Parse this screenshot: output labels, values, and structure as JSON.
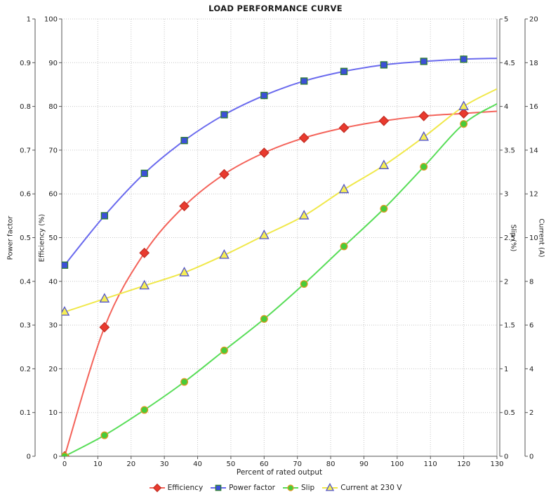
{
  "title": "LOAD PERFORMANCE CURVE",
  "chart_data": {
    "type": "line",
    "title": "LOAD PERFORMANCE CURVE",
    "xlabel": "Percent of rated output",
    "xlim": [
      0,
      130
    ],
    "x_tick_step": 10,
    "grid": true,
    "legend_position": "bottom",
    "x": [
      0,
      12,
      24,
      36,
      48,
      60,
      72,
      84,
      96,
      108,
      120
    ],
    "axes": [
      {
        "id": "power_factor",
        "label": "Power factor",
        "side": "left",
        "position": "outer",
        "min": 0,
        "max": 1,
        "tick_step": 0.1
      },
      {
        "id": "efficiency",
        "label": "Efficiency (%)",
        "side": "left",
        "position": "inner",
        "min": 0,
        "max": 100,
        "tick_step": 10
      },
      {
        "id": "slip",
        "label": "Slip (%)",
        "side": "right",
        "position": "inner",
        "min": 0,
        "max": 5,
        "tick_step": 0.5
      },
      {
        "id": "current",
        "label": "Current (A)",
        "side": "right",
        "position": "outer",
        "min": 0,
        "max": 20,
        "tick_step": 2
      }
    ],
    "series": [
      {
        "name": "Efficiency",
        "axis": "efficiency",
        "marker": "diamond",
        "line_color": "#f4635a",
        "marker_fill": "#e93a2e",
        "marker_stroke": "#c42f25",
        "values": [
          0,
          29.5,
          46.5,
          57.2,
          64.5,
          69.4,
          72.8,
          75.1,
          76.7,
          77.8,
          78.4
        ],
        "fit_value_at_xmax": 78.9
      },
      {
        "name": "Power factor",
        "axis": "power_factor",
        "marker": "square",
        "line_color": "#6a6aee",
        "marker_fill": "#3c50d8",
        "marker_stroke": "#2e7d32",
        "values": [
          0.437,
          0.55,
          0.647,
          0.722,
          0.781,
          0.825,
          0.858,
          0.88,
          0.895,
          0.903,
          0.908
        ],
        "fit_value_at_xmax": 0.91
      },
      {
        "name": "Slip",
        "axis": "slip",
        "marker": "circle",
        "line_color": "#58dd58",
        "marker_fill": "#47cc39",
        "marker_stroke": "#dd9922",
        "values": [
          0,
          0.24,
          0.53,
          0.85,
          1.21,
          1.57,
          1.97,
          2.4,
          2.83,
          3.31,
          3.8
        ],
        "fit_value_at_xmax": 4.03
      },
      {
        "name": "Current at 230 V",
        "axis": "current",
        "marker": "triangle",
        "line_color": "#f0e84a",
        "marker_fill": "#f6ee55",
        "marker_stroke": "#5355cb",
        "values": [
          6.6,
          7.2,
          7.8,
          8.4,
          9.2,
          10.1,
          11.0,
          12.2,
          13.3,
          14.6,
          16.0
        ],
        "fit_value_at_xmax": 16.8
      }
    ],
    "colors": {
      "grid": "#c6c6c6",
      "axis": "#555555",
      "frame": "#999999",
      "tick_text": "#222222",
      "background": "#ffffff"
    }
  }
}
